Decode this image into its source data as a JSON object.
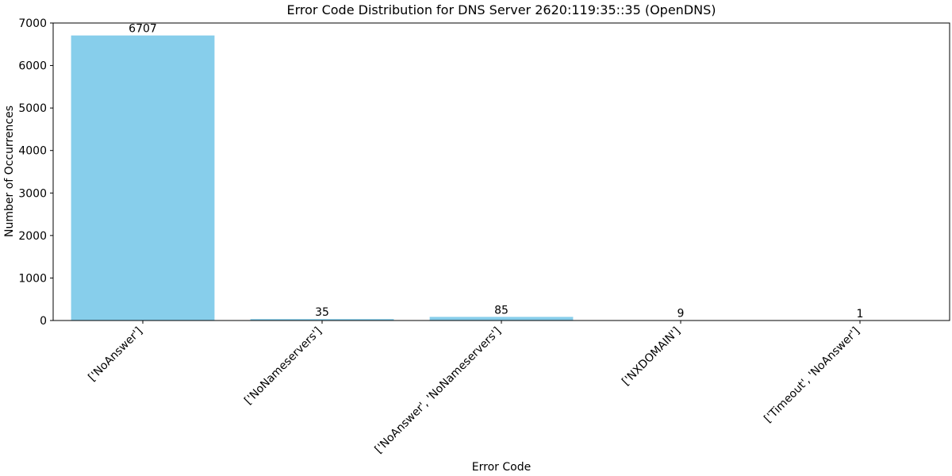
{
  "chart_data": {
    "type": "bar",
    "title": "Error Code Distribution for DNS Server 2620:119:35::35 (OpenDNS)",
    "xlabel": "Error Code",
    "ylabel": "Number of Occurrences",
    "categories": [
      "['NoAnswer']",
      "['NoNameservers']",
      "['NoAnswer', 'NoNameservers']",
      "['NXDOMAIN']",
      "['Timeout', 'NoAnswer']"
    ],
    "values": [
      6707,
      35,
      85,
      9,
      1
    ],
    "data_labels": [
      "6707",
      "35",
      "85",
      "9",
      "1"
    ],
    "ylim": [
      0,
      7000
    ],
    "yticks": [
      0,
      1000,
      2000,
      3000,
      4000,
      5000,
      6000,
      7000
    ],
    "ytick_labels": [
      "0",
      "1000",
      "2000",
      "3000",
      "4000",
      "5000",
      "6000",
      "7000"
    ],
    "grid": false,
    "bar_color": "#87ceeb"
  }
}
